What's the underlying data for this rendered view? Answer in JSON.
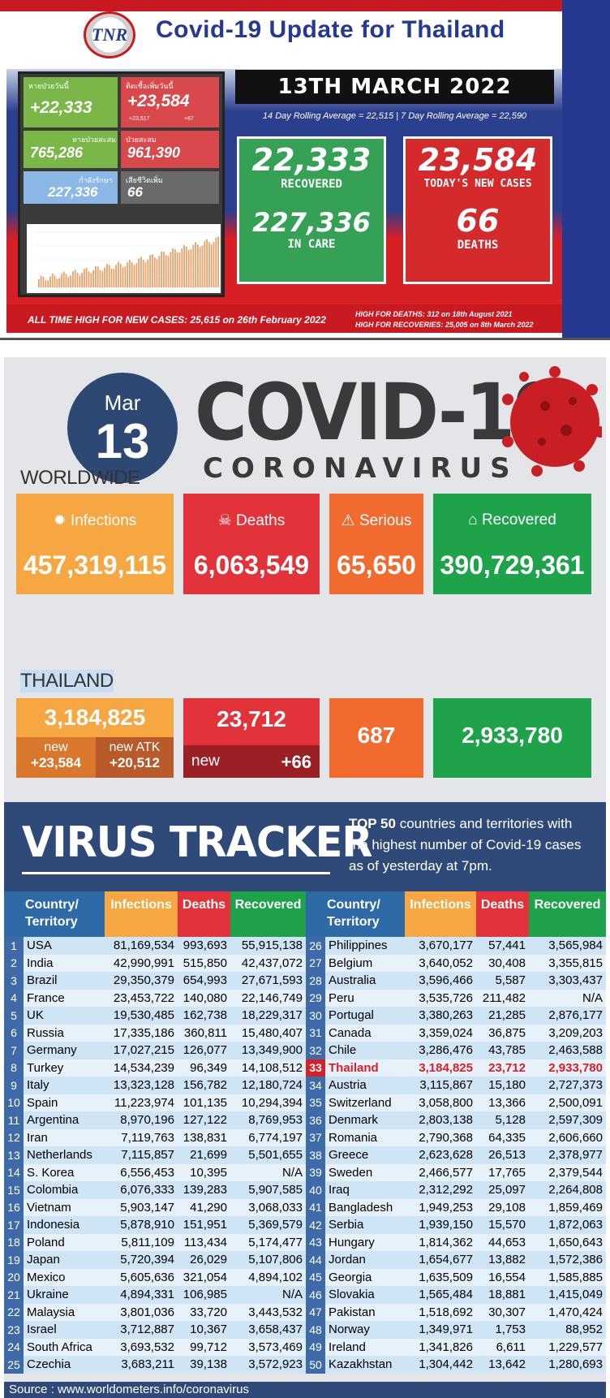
{
  "top_panel": {
    "logo_text": "TNR",
    "title": "Covid-19 Update for Thailand",
    "date": "13TH MARCH 2022",
    "rolling": "14 Day Rolling Average = 22,515 | 7 Day Rolling Average = 22,590",
    "mini": {
      "recovered_label": "หายป่วยวันนี้",
      "recovered_value": "+22,333",
      "new_label": "ติดเชื้อเพิ่มวันนี้",
      "new_value": "+23,584",
      "new_sub1": "+23,517",
      "new_sub2": "+67",
      "total_recovered_label": "หายป่วยสะสม",
      "total_recovered_value": "765,286",
      "total_cases_label": "ป่วยสะสม",
      "total_cases_value": "961,390",
      "in_care_label": "กำลังรักษา",
      "in_care_value": "227,336",
      "deaths_label": "เสียชีวิตเพิ่ม",
      "deaths_value": "66"
    },
    "boxes": {
      "recovered_value": "22,333",
      "recovered_label": "RECOVERED",
      "in_care_value": "227,336",
      "in_care_label": "IN CARE",
      "new_cases_value": "23,584",
      "new_cases_label": "TODAY'S NEW CASES",
      "deaths_value": "66",
      "deaths_label": "DEATHS"
    },
    "footer_left": "ALL TIME HIGH FOR NEW CASES: 25,615 on 26th February 2022",
    "footer_right1": "HIGH FOR DEATHS: 312 on 18th August 2021",
    "footer_right2": "HIGH FOR RECOVERIES: 25,005 on 8th March 2022",
    "colors": {
      "green": "#34a155",
      "red": "#d42a2c",
      "navy": "#24398f"
    }
  },
  "bottom_panel": {
    "month": "Mar",
    "day": "13",
    "headline": "COVID-19",
    "subheadline": "CORONAVIRUS",
    "worldwide_title": "WORLDWIDE",
    "worldwide": {
      "infections_label": "Infections",
      "infections": "457,319,115",
      "deaths_label": "Deaths",
      "deaths": "6,063,549",
      "serious_label": "Serious",
      "serious": "65,650",
      "recovered_label": "Recovered",
      "recovered": "390,729,361"
    },
    "thailand_title": "THAILAND",
    "thailand": {
      "infections": "3,184,825",
      "new_label": "new",
      "new_value": "+23,584",
      "new_atk_label": "new ATK",
      "new_atk_value": "+20,512",
      "deaths": "23,712",
      "deaths_new_label": "new",
      "deaths_new_value": "+66",
      "serious": "687",
      "recovered": "2,933,780"
    },
    "tracker_title": "VIRUS TRACKER",
    "tracker_desc_bold": "TOP 50",
    "tracker_desc": " countries and territories with the highest number of Covid-19 cases as of yesterday at 7pm.",
    "headers": {
      "country": "Country/ Territory",
      "infections": "Infections",
      "deaths": "Deaths",
      "recovered": "Recovered"
    },
    "left_rows": [
      [
        "1",
        "USA",
        "81,169,534",
        "993,693",
        "55,915,138"
      ],
      [
        "2",
        "India",
        "42,990,991",
        "515,850",
        "42,437,072"
      ],
      [
        "3",
        "Brazil",
        "29,350,379",
        "654,993",
        "27,671,593"
      ],
      [
        "4",
        "France",
        "23,453,722",
        "140,080",
        "22,146,749"
      ],
      [
        "5",
        "UK",
        "19,530,485",
        "162,738",
        "18,229,317"
      ],
      [
        "6",
        "Russia",
        "17,335,186",
        "360,811",
        "15,480,407"
      ],
      [
        "7",
        "Germany",
        "17,027,215",
        "126,077",
        "13,349,900"
      ],
      [
        "8",
        "Turkey",
        "14,534,239",
        "96,349",
        "14,108,512"
      ],
      [
        "9",
        "Italy",
        "13,323,128",
        "156,782",
        "12,180,724"
      ],
      [
        "10",
        "Spain",
        "11,223,974",
        "101,135",
        "10,294,394"
      ],
      [
        "11",
        "Argentina",
        "8,970,196",
        "127,122",
        "8,769,953"
      ],
      [
        "12",
        "Iran",
        "7,119,763",
        "138,831",
        "6,774,197"
      ],
      [
        "13",
        "Netherlands",
        "7,115,857",
        "21,699",
        "5,501,655"
      ],
      [
        "14",
        "S. Korea",
        "6,556,453",
        "10,395",
        "N/A"
      ],
      [
        "15",
        "Colombia",
        "6,076,333",
        "139,283",
        "5,907,585"
      ],
      [
        "16",
        "Vietnam",
        "5,903,147",
        "41,290",
        "3,068,033"
      ],
      [
        "17",
        "Indonesia",
        "5,878,910",
        "151,951",
        "5,369,579"
      ],
      [
        "18",
        "Poland",
        "5,811,109",
        "113,434",
        "5,174,477"
      ],
      [
        "19",
        "Japan",
        "5,720,394",
        "26,029",
        "5,107,806"
      ],
      [
        "20",
        "Mexico",
        "5,605,636",
        "321,054",
        "4,894,102"
      ],
      [
        "21",
        "Ukraine",
        "4,894,331",
        "106,985",
        "N/A"
      ],
      [
        "22",
        "Malaysia",
        "3,801,036",
        "33,720",
        "3,443,532"
      ],
      [
        "23",
        "Israel",
        "3,712,887",
        "10,367",
        "3,658,437"
      ],
      [
        "24",
        "South Africa",
        "3,693,532",
        "99,712",
        "3,573,469"
      ],
      [
        "25",
        "Czechia",
        "3,683,211",
        "39,138",
        "3,572,923"
      ]
    ],
    "right_rows": [
      [
        "26",
        "Philippines",
        "3,670,177",
        "57,441",
        "3,565,984"
      ],
      [
        "27",
        "Belgium",
        "3,640,052",
        "30,408",
        "3,355,815"
      ],
      [
        "28",
        "Australia",
        "3,596,466",
        "5,587",
        "3,303,437"
      ],
      [
        "29",
        "Peru",
        "3,535,726",
        "211,482",
        "N/A"
      ],
      [
        "30",
        "Portugal",
        "3,380,263",
        "21,285",
        "2,876,177"
      ],
      [
        "31",
        "Canada",
        "3,359,024",
        "36,875",
        "3,209,203"
      ],
      [
        "32",
        "Chile",
        "3,286,476",
        "43,785",
        "2,463,588"
      ],
      [
        "33",
        "Thailand",
        "3,184,825",
        "23,712",
        "2,933,780"
      ],
      [
        "34",
        "Austria",
        "3,115,867",
        "15,180",
        "2,727,373"
      ],
      [
        "35",
        "Switzerland",
        "3,058,800",
        "13,366",
        "2,500,091"
      ],
      [
        "36",
        "Denmark",
        "2,803,138",
        "5,128",
        "2,597,309"
      ],
      [
        "37",
        "Romania",
        "2,790,368",
        "64,335",
        "2,606,660"
      ],
      [
        "38",
        "Greece",
        "2,623,628",
        "26,513",
        "2,378,977"
      ],
      [
        "39",
        "Sweden",
        "2,466,577",
        "17,765",
        "2,379,544"
      ],
      [
        "40",
        "Iraq",
        "2,312,292",
        "25,097",
        "2,264,808"
      ],
      [
        "41",
        "Bangladesh",
        "1,949,253",
        "29,108",
        "1,859,469"
      ],
      [
        "42",
        "Serbia",
        "1,939,150",
        "15,570",
        "1,872,063"
      ],
      [
        "43",
        "Hungary",
        "1,814,362",
        "44,653",
        "1,650,643"
      ],
      [
        "44",
        "Jordan",
        "1,654,677",
        "13,882",
        "1,572,386"
      ],
      [
        "45",
        "Georgia",
        "1,635,509",
        "16,554",
        "1,585,885"
      ],
      [
        "46",
        "Slovakia",
        "1,565,484",
        "18,881",
        "1,415,049"
      ],
      [
        "47",
        "Pakistan",
        "1,518,692",
        "30,307",
        "1,470,424"
      ],
      [
        "48",
        "Norway",
        "1,349,971",
        "1,753",
        "88,952"
      ],
      [
        "49",
        "Ireland",
        "1,341,826",
        "6,611",
        "1,229,577"
      ],
      [
        "50",
        "Kazakhstan",
        "1,304,442",
        "13,642",
        "1,280,693"
      ]
    ],
    "source": "Source : www.worldometers.info/coronavirus",
    "colors": {
      "infections": "#f6a742",
      "deaths": "#e3333a",
      "serious": "#f06b2d",
      "recovered": "#1ea24a",
      "navy": "#2f4a78"
    }
  }
}
